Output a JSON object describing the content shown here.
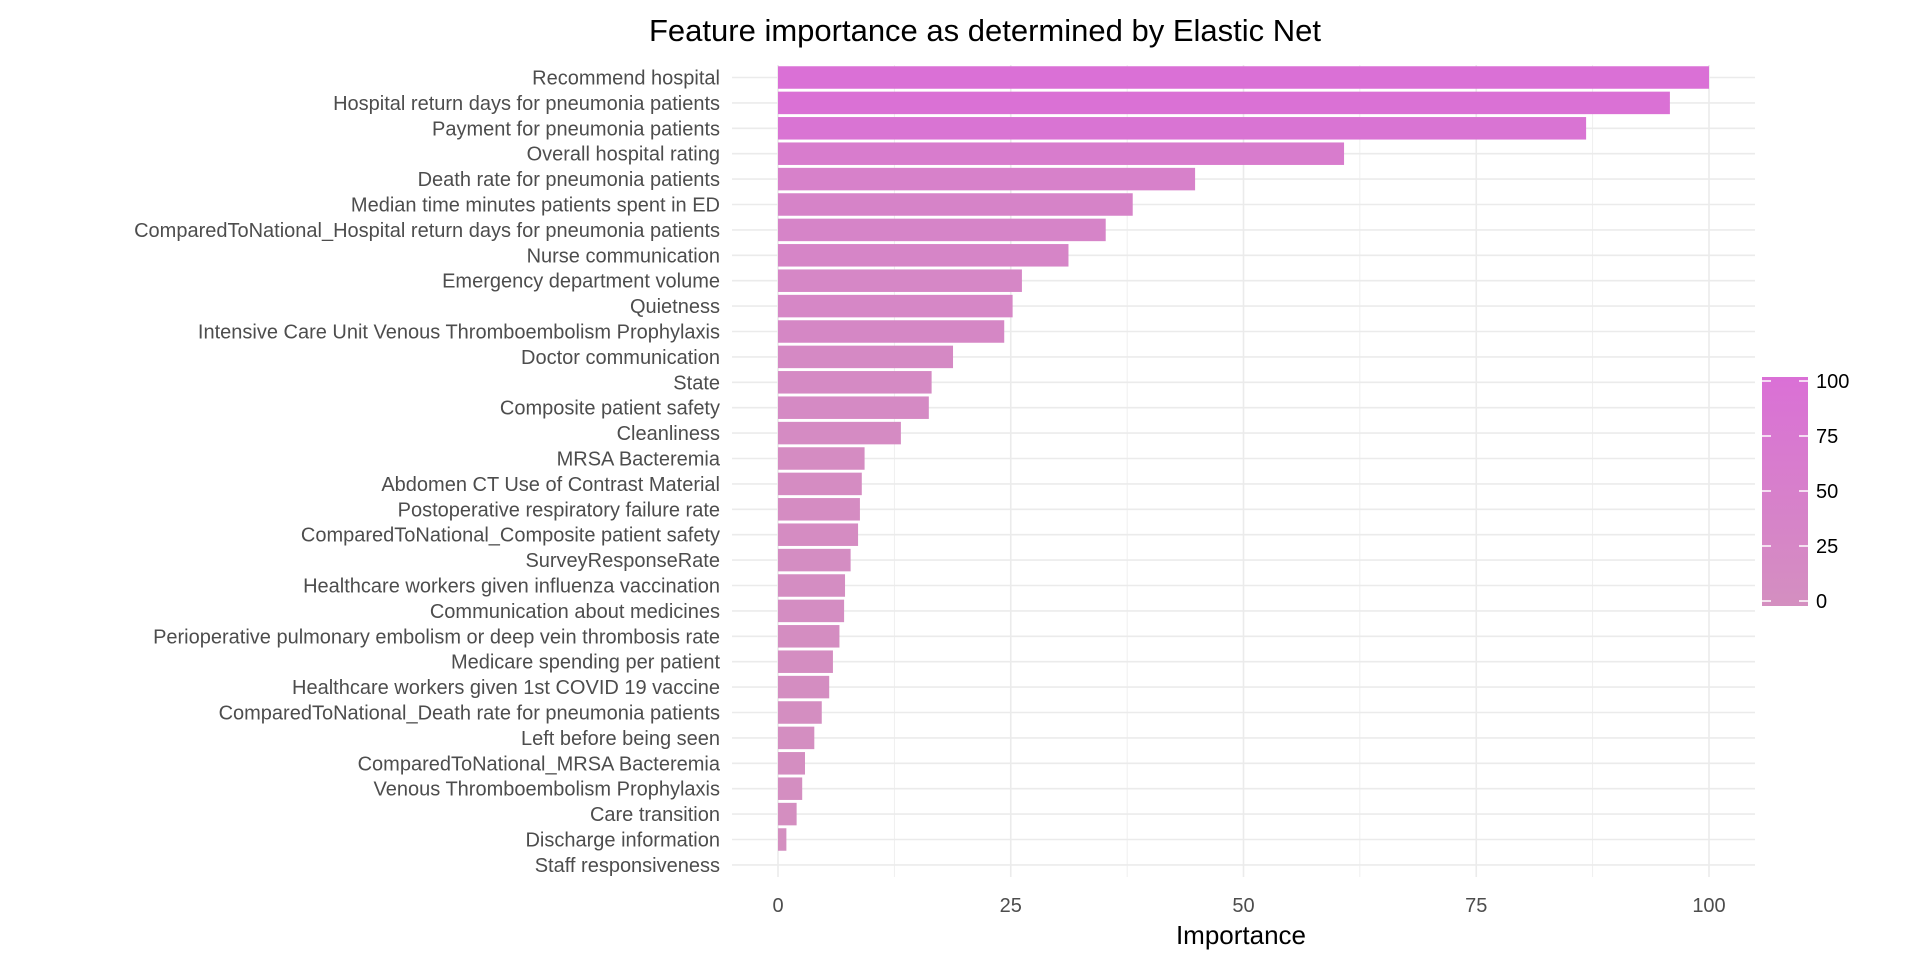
{
  "chart_data": {
    "type": "bar",
    "orientation": "horizontal",
    "title": "Feature importance as determined by Elastic Net",
    "xlabel": "Importance",
    "ylabel": "",
    "xlim": [
      0,
      100
    ],
    "x_ticks": [
      0,
      25,
      50,
      75,
      100
    ],
    "grid": true,
    "legend_placement": "right",
    "colors": {
      "low": "#D48FC0",
      "high": "#DA70D6",
      "grid": "#EBEBEB"
    },
    "legend": {
      "ticks": [
        0,
        25,
        50,
        75,
        100
      ]
    },
    "categories": [
      "Recommend hospital",
      "Hospital return days for pneumonia patients",
      "Payment for pneumonia patients",
      "Overall hospital rating",
      "Death rate for pneumonia patients",
      "Median time  minutes  patients spent in ED",
      "ComparedToNational_Hospital return days for pneumonia patients",
      "Nurse communication",
      "Emergency department volume",
      "Quietness",
      "Intensive Care Unit Venous Thromboembolism Prophylaxis",
      "Doctor communication",
      "State",
      "Composite patient safety",
      "Cleanliness",
      "MRSA Bacteremia",
      "Abdomen CT Use of Contrast Material",
      "Postoperative respiratory failure rate",
      "ComparedToNational_Composite patient safety",
      "SurveyResponseRate",
      "Healthcare workers given influenza vaccination",
      "Communication about medicines",
      "Perioperative pulmonary embolism or deep vein thrombosis rate",
      "Medicare spending per patient",
      "Healthcare workers given 1st COVID 19 vaccine",
      "ComparedToNational_Death rate for pneumonia patients",
      "Left before being seen",
      "ComparedToNational_MRSA Bacteremia",
      "Venous Thromboembolism Prophylaxis",
      "Care transition",
      "Discharge information",
      "Staff responsiveness"
    ],
    "values": [
      100,
      95.8,
      86.8,
      60.8,
      44.8,
      38.1,
      35.2,
      31.2,
      26.2,
      25.2,
      24.3,
      18.8,
      16.5,
      16.2,
      13.2,
      9.3,
      9.0,
      8.8,
      8.6,
      7.8,
      7.2,
      7.1,
      6.6,
      5.9,
      5.5,
      4.7,
      3.9,
      2.9,
      2.6,
      2.0,
      0.9,
      0
    ]
  }
}
